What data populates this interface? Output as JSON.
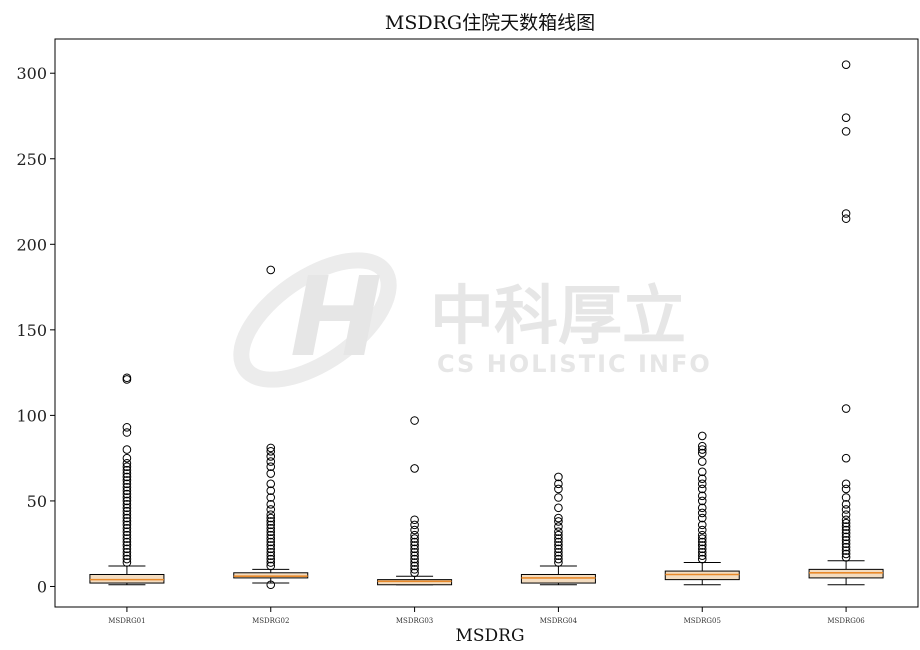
{
  "chart_data": {
    "type": "box",
    "title": "MSDRG住院天数箱线图",
    "xlabel": "MSDRG",
    "ylabel": "",
    "ylim": [
      -12,
      320
    ],
    "yticks": [
      0,
      50,
      100,
      150,
      200,
      250,
      300
    ],
    "grid": false,
    "legend": "none",
    "colors": {
      "box_fill": "#f3dcc0",
      "median": "#e8892a",
      "frame": "#000000",
      "flier": "#000000"
    },
    "categories": [
      "MSDRG01",
      "MSDRG02",
      "MSDRG03",
      "MSDRG04",
      "MSDRG05",
      "MSDRG06"
    ],
    "boxes": [
      {
        "category": "MSDRG01",
        "whisker_low": 1,
        "q1": 2,
        "median": 4,
        "q3": 7,
        "whisker_high": 12,
        "fliers": [
          14,
          16,
          18,
          20,
          22,
          24,
          26,
          28,
          30,
          32,
          34,
          36,
          38,
          40,
          42,
          44,
          46,
          48,
          50,
          52,
          54,
          56,
          58,
          60,
          62,
          64,
          66,
          68,
          70,
          72,
          75,
          80,
          90,
          93,
          121,
          122
        ]
      },
      {
        "category": "MSDRG02",
        "whisker_low": 2,
        "q1": 5,
        "median": 6,
        "q3": 8,
        "whisker_high": 10,
        "fliers": [
          1,
          12,
          14,
          16,
          18,
          20,
          22,
          24,
          26,
          28,
          30,
          32,
          34,
          36,
          38,
          40,
          42,
          45,
          48,
          52,
          56,
          60,
          66,
          70,
          73,
          76,
          79,
          81,
          185
        ]
      },
      {
        "category": "MSDRG03",
        "whisker_low": 1,
        "q1": 1,
        "median": 3,
        "q3": 4,
        "whisker_high": 6,
        "fliers": [
          8,
          10,
          12,
          14,
          16,
          18,
          20,
          22,
          24,
          26,
          28,
          30,
          33,
          36,
          39,
          69,
          97
        ]
      },
      {
        "category": "MSDRG04",
        "whisker_low": 1,
        "q1": 2,
        "median": 5,
        "q3": 7,
        "whisker_high": 12,
        "fliers": [
          14,
          16,
          18,
          20,
          22,
          24,
          26,
          28,
          30,
          32,
          35,
          38,
          40,
          46,
          52,
          57,
          60,
          64
        ]
      },
      {
        "category": "MSDRG05",
        "whisker_low": 1,
        "q1": 4,
        "median": 7,
        "q3": 9,
        "whisker_high": 14,
        "fliers": [
          16,
          18,
          20,
          22,
          24,
          26,
          28,
          30,
          33,
          36,
          40,
          43,
          46,
          50,
          53,
          57,
          60,
          63,
          67,
          73,
          78,
          80,
          82,
          88
        ]
      },
      {
        "category": "MSDRG06",
        "whisker_low": 1,
        "q1": 5,
        "median": 8,
        "q3": 10,
        "whisker_high": 15,
        "fliers": [
          17,
          19,
          21,
          23,
          25,
          27,
          29,
          31,
          33,
          35,
          37,
          39,
          42,
          45,
          48,
          52,
          57,
          60,
          75,
          104,
          215,
          218,
          266,
          274,
          305
        ]
      }
    ],
    "watermark": {
      "cn": "中科厚立",
      "en": "CS HOLISTIC INFO"
    }
  }
}
